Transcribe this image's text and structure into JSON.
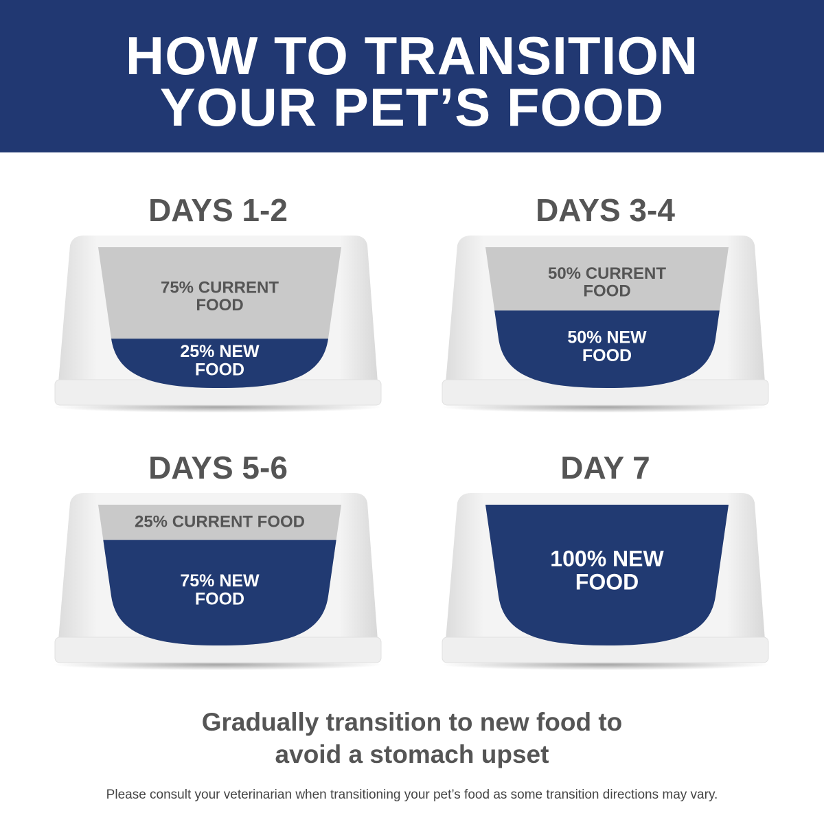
{
  "header": {
    "title_line1": "HOW TO TRANSITION",
    "title_line2": "YOUR PET’S FOOD"
  },
  "colors": {
    "header_bg": "#213872",
    "new_food": "#213a72",
    "current_food": "#c9c9c9",
    "heading_text": "#555555"
  },
  "stages": [
    {
      "heading": "DAYS 1-2",
      "new_food_fraction": 0.25,
      "current_label": [
        "75% CURRENT",
        "FOOD"
      ],
      "new_label": [
        "25% NEW",
        "FOOD"
      ]
    },
    {
      "heading": "DAYS 3-4",
      "new_food_fraction": 0.5,
      "current_label": [
        "50% CURRENT",
        "FOOD"
      ],
      "new_label": [
        "50% NEW",
        "FOOD"
      ]
    },
    {
      "heading": "DAYS 5-6",
      "new_food_fraction": 0.75,
      "current_label": [
        "25% CURRENT FOOD"
      ],
      "new_label": [
        "75% NEW",
        "FOOD"
      ]
    },
    {
      "heading": "DAY 7",
      "new_food_fraction": 1.0,
      "current_label": [],
      "new_label": [
        "100% NEW",
        "FOOD"
      ]
    }
  ],
  "footer": {
    "tagline_line1": "Gradually transition to new food to",
    "tagline_line2": "avoid a stomach upset",
    "note": "Please consult your veterinarian when transitioning your pet’s food as some transition directions may vary."
  }
}
